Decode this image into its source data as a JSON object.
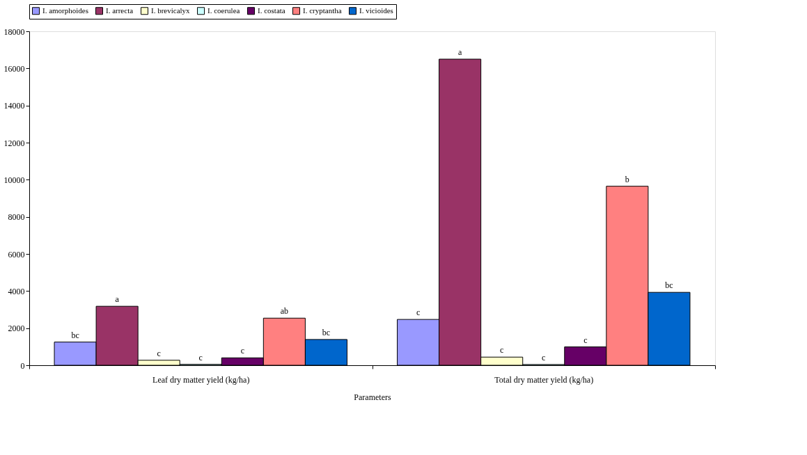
{
  "chart_data": {
    "type": "bar",
    "xlabel": "Parameters",
    "categories": [
      "Leaf dry matter yield (kg/ha)",
      "Total dry matter yield (kg/ha)"
    ],
    "series": [
      {
        "name": "I. amorphoides",
        "color": "#9999ff",
        "values": [
          1250,
          2470
        ],
        "value_labels": [
          "bc",
          "c"
        ]
      },
      {
        "name": "I. arrecta",
        "color": "#993366",
        "values": [
          3180,
          16500
        ],
        "value_labels": [
          "a",
          "a"
        ]
      },
      {
        "name": "I. brevicalyx",
        "color": "#ffffcc",
        "values": [
          270,
          440
        ],
        "value_labels": [
          "c",
          "c"
        ]
      },
      {
        "name": "I. coerulea",
        "color": "#ccffff",
        "values": [
          50,
          40
        ],
        "value_labels": [
          "c",
          "c"
        ]
      },
      {
        "name": "I. costata",
        "color": "#660066",
        "values": [
          400,
          990
        ],
        "value_labels": [
          "c",
          "c"
        ]
      },
      {
        "name": "I. cryptantha",
        "color": "#ff8080",
        "values": [
          2540,
          9650
        ],
        "value_labels": [
          "ab",
          "b"
        ]
      },
      {
        "name": "I. vicioides",
        "color": "#0066cc",
        "values": [
          1390,
          3930
        ],
        "value_labels": [
          "bc",
          "bc"
        ]
      }
    ],
    "ylim": [
      0,
      18000
    ],
    "yticks": [
      0,
      2000,
      4000,
      6000,
      8000,
      10000,
      12000,
      14000,
      16000,
      18000
    ],
    "grid": false,
    "legend": "top"
  }
}
